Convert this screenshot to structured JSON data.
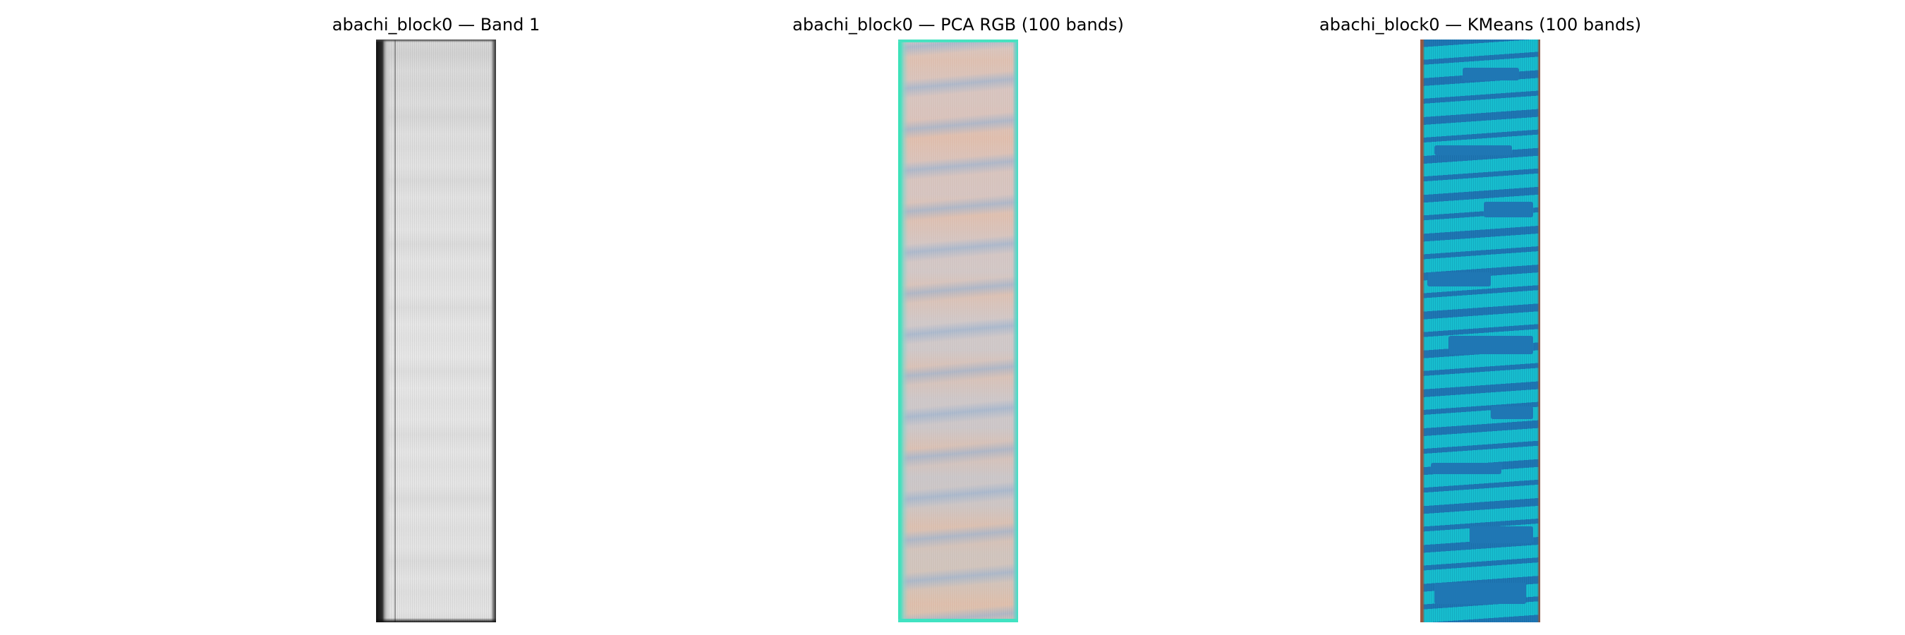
{
  "panels": [
    {
      "title": "abachi_block0 — Band 1",
      "image_kind": "grayscale-band-image"
    },
    {
      "title": "abachi_block0 — PCA RGB (100 bands)",
      "image_kind": "pca-rgb-composite-image"
    },
    {
      "title": "abachi_block0 — KMeans (100 bands)",
      "image_kind": "kmeans-cluster-map-image",
      "colors": {
        "cluster_a": "#1f77b4",
        "cluster_b": "#17becf",
        "edge": "#a0563f"
      }
    }
  ]
}
